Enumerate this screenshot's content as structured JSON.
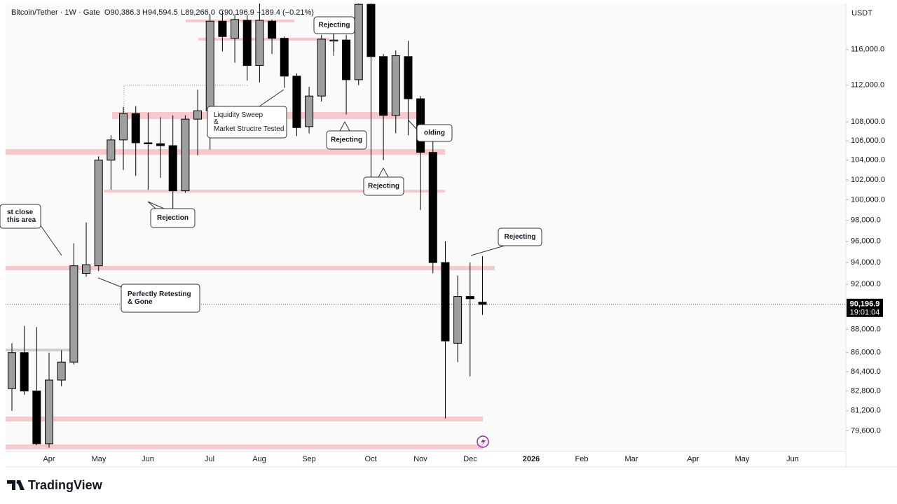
{
  "chart_data": {
    "type": "candlestick",
    "header": {
      "symbol": "Bitcoin/Tether · 1W · Gate",
      "ohlc": [
        "O90,386.3",
        "H94,594.5",
        "L89,266.0",
        "C90,196.9"
      ],
      "change": "−189.4 (−0.21%)"
    },
    "currency": "USDT",
    "log_scale": true,
    "up_color": "#9e9e9e",
    "down_color": "#000000",
    "categories": [
      null,
      null,
      null,
      null,
      null,
      null,
      null,
      null,
      null,
      null,
      null,
      null,
      null,
      null,
      null,
      null,
      null,
      null,
      null,
      null,
      null,
      null,
      null,
      null,
      null,
      null,
      null,
      null,
      null,
      null,
      null,
      null,
      null,
      null,
      null,
      null,
      null,
      null,
      null
    ],
    "series": [
      {
        "name": "open",
        "values": [
          83000,
          86000,
          82800,
          78600,
          83700,
          85200,
          93000,
          93700,
          104000,
          106100,
          108900,
          105800,
          105700,
          105500,
          100900,
          108300,
          109200,
          119300,
          117300,
          119400,
          114200,
          119300,
          117300,
          113000,
          107500,
          110800,
          117000,
          117100,
          112600,
          121300,
          115200,
          108700,
          115200,
          110500,
          104800,
          94000,
          86800,
          90900,
          90386.3
        ]
      },
      {
        "name": "high",
        "values": [
          86800,
          88300,
          88200,
          86000,
          86200,
          95800,
          97800,
          104400,
          106600,
          109600,
          109700,
          109000,
          108500,
          108700,
          108700,
          111500,
          120100,
          120500,
          120000,
          120000,
          121400,
          119500,
          117500,
          113300,
          111800,
          117700,
          118600,
          117700,
          121400,
          121400,
          115500,
          115900,
          117000,
          110800,
          106000,
          96000,
          92800,
          94000,
          94594.5
        ]
      },
      {
        "name": "low",
        "values": [
          81200,
          82500,
          78500,
          78300,
          83200,
          85000,
          92700,
          93200,
          101000,
          103000,
          102400,
          101000,
          102200,
          98000,
          100700,
          104500,
          105100,
          115800,
          114500,
          112500,
          112300,
          115500,
          111700,
          106500,
          106800,
          110200,
          115800,
          108800,
          112000,
          101700,
          104000,
          106800,
          106600,
          99000,
          93000,
          80600,
          85200,
          84000,
          89266.0
        ]
      },
      {
        "name": "close",
        "values": [
          86000,
          82800,
          78600,
          83700,
          85200,
          93700,
          93800,
          104000,
          106100,
          108900,
          105800,
          105700,
          105500,
          100900,
          108300,
          109200,
          119300,
          117500,
          119500,
          114200,
          119400,
          117300,
          113000,
          107400,
          110800,
          117200,
          117100,
          112600,
          121300,
          115200,
          108700,
          115300,
          110500,
          104800,
          94000,
          87000,
          90900,
          90700,
          90196.9
        ]
      }
    ],
    "ylim": [
      78000,
      121400
    ],
    "yticks": [
      {
        "value": 116000,
        "label": "116,000.0"
      },
      {
        "value": 112000,
        "label": "112,000.0"
      },
      {
        "value": 108000,
        "label": "108,000.0"
      },
      {
        "value": 106000,
        "label": "106,000.0"
      },
      {
        "value": 104000,
        "label": "104,000.0"
      },
      {
        "value": 102000,
        "label": "102,000.0"
      },
      {
        "value": 100000,
        "label": "100,000.0"
      },
      {
        "value": 98000,
        "label": "98,000.0"
      },
      {
        "value": 96000,
        "label": "96,000.0"
      },
      {
        "value": 94000,
        "label": "94,000.0"
      },
      {
        "value": 92000,
        "label": "92,000.0"
      },
      {
        "value": 88000,
        "label": "88,000.0"
      },
      {
        "value": 86000,
        "label": "86,000.0"
      },
      {
        "value": 84400,
        "label": "84,400.0"
      },
      {
        "value": 82800,
        "label": "82,800.0"
      },
      {
        "value": 81200,
        "label": "81,200.0"
      },
      {
        "value": 79600,
        "label": "79,600.0"
      }
    ],
    "last_price": {
      "value": 90196.9,
      "label": "90,196.9"
    },
    "countdown": "19:01:04",
    "x_labels": [
      "Apr",
      "May",
      "Jun",
      "Jul",
      "Aug",
      "Sep",
      "Oct",
      "Nov",
      "Dec",
      "2026",
      "Feb",
      "Mar",
      "Apr",
      "May",
      "Jun"
    ],
    "annotations": [
      [
        "Rejecting"
      ],
      [
        "Liquidity Sweep",
        "&",
        "Market Structre Tested"
      ],
      [
        "Rejecting"
      ],
      [
        "Rejecting"
      ],
      [
        "olding"
      ],
      [
        "Rejection"
      ],
      [
        "st close",
        "this area"
      ],
      [
        "Perfectly Retesting",
        "& Gone"
      ],
      [
        "Rejecting"
      ]
    ],
    "logo": "TradingView"
  }
}
